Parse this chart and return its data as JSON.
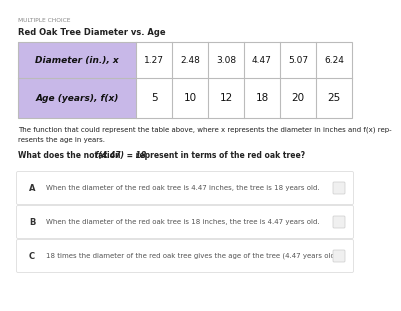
{
  "title_label": "MULTIPLE CHOICE",
  "subtitle": "Red Oak Tree Diameter vs. Age",
  "row1_label": "Diameter (in.), x",
  "row2_label": "Age (years), f(x)",
  "col_values_x": [
    "1.27",
    "2.48",
    "3.08",
    "4.47",
    "5.07",
    "6.24"
  ],
  "col_values_fx": [
    "5",
    "10",
    "12",
    "18",
    "20",
    "25"
  ],
  "desc_line1": "The function that could represent the table above, where x represents the diameter in inches and f(x) rep-",
  "desc_line2": "resents the age in years.",
  "q_pre": "What does the notation ",
  "q_math": "f(4.47) = 18",
  "q_post": " represent in terms of the red oak tree?",
  "options": [
    {
      "label": "A",
      "text": "When the diameter of the red oak tree is 4.47 inches, the tree is 18 years old."
    },
    {
      "label": "B",
      "text": "When the diameter of the red oak tree is 18 inches, the tree is 4.47 years old."
    },
    {
      "label": "C",
      "text": "18 times the diameter of the red oak tree gives the age of the tree (4.47 years old)."
    }
  ],
  "header_bg": "#c8b8e8",
  "table_border": "#bbbbbb",
  "option_box_border": "#dddddd",
  "option_box_bg": "#ffffff",
  "bg_color": "#ffffff",
  "text_color": "#222222",
  "grey_text": "#888888",
  "option_text_color": "#555555",
  "label_color": "#333333"
}
